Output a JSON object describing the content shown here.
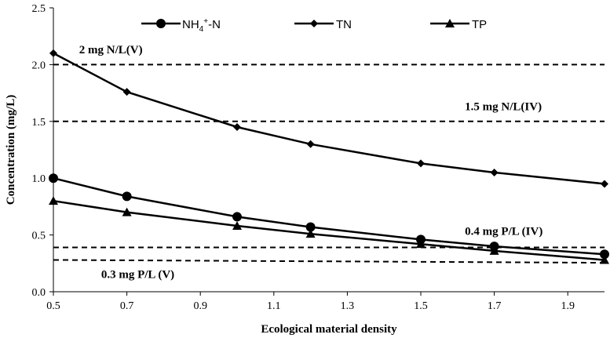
{
  "chart_data": {
    "type": "line",
    "title": "",
    "xlabel": "Ecological material density",
    "ylabel": "Concentration (mg/L)",
    "xlim": [
      0.5,
      2.0
    ],
    "ylim": [
      0.0,
      2.5
    ],
    "xticks": [
      "0.5",
      "0.7",
      "0.9",
      "1.1",
      "1.3",
      "1.5",
      "1.7",
      "1.9"
    ],
    "yticks": [
      "0.0",
      "0.5",
      "1.0",
      "1.5",
      "2.0",
      "2.5"
    ],
    "grid": false,
    "legend_position": "top",
    "x": [
      0.5,
      0.7,
      1.0,
      1.2,
      1.5,
      1.7,
      2.0
    ],
    "series": [
      {
        "name_main": "NH",
        "name_sub": "4",
        "name_sup": "+",
        "name_tail": "-N",
        "marker": "circle",
        "values": [
          1.0,
          0.84,
          0.66,
          0.57,
          0.46,
          0.4,
          0.33
        ]
      },
      {
        "name": "TN",
        "marker": "diamond",
        "values": [
          2.1,
          1.76,
          1.45,
          1.3,
          1.13,
          1.05,
          0.95
        ]
      },
      {
        "name": "TP",
        "marker": "triangle",
        "values": [
          0.8,
          0.7,
          0.58,
          0.51,
          0.42,
          0.36,
          0.28
        ]
      }
    ],
    "reference_lines": [
      {
        "value": 2.0,
        "label": "2 mg N/L(V)",
        "label_x": 0.57,
        "label_y": 2.1
      },
      {
        "value": 1.5,
        "label": "1.5 mg N/L(IV)",
        "label_x": 1.62,
        "label_y": 1.6
      },
      {
        "value": 0.39,
        "label": "0.4 mg P/L (IV)",
        "label_x": 1.62,
        "label_y": 0.5
      },
      {
        "value": 0.28,
        "label": "0.3 mg P/L (V)",
        "label_x": 0.63,
        "label_y": 0.12
      }
    ],
    "reference_y_end": [
      2.0,
      1.5,
      0.39,
      0.255
    ]
  }
}
